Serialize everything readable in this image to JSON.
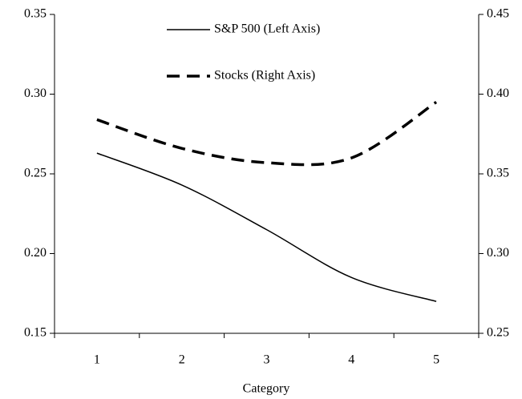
{
  "chart_data": {
    "type": "line",
    "x_label": "Category",
    "categories": [
      "1",
      "2",
      "3",
      "4",
      "5"
    ],
    "series": [
      {
        "name": "S&P 500 (Left Axis)",
        "color": "#000000",
        "dash": false,
        "values": [
          0.263,
          0.243,
          0.215,
          0.185,
          0.17
        ]
      },
      {
        "name": "Stocks (Right Axis)",
        "color": "#000000",
        "dash": true,
        "axis": "y2",
        "values": [
          0.384,
          0.366,
          0.357,
          0.36,
          0.395
        ]
      }
    ],
    "ylim": [
      0.15,
      0.35
    ],
    "yticks": [
      {
        "value": 0.15,
        "label": "0.15"
      },
      {
        "value": 0.2,
        "label": "0.20"
      },
      {
        "value": 0.25,
        "label": "0.25"
      },
      {
        "value": 0.3,
        "label": "0.30"
      },
      {
        "value": 0.35,
        "label": "0.35"
      }
    ],
    "y2lim": [
      0.25,
      0.45
    ],
    "y2ticks": [
      {
        "value": 0.25,
        "label": "0.25"
      },
      {
        "value": 0.3,
        "label": "0.30"
      },
      {
        "value": 0.35,
        "label": "0.35"
      },
      {
        "value": 0.4,
        "label": "0.40"
      },
      {
        "value": 0.45,
        "label": "0.45"
      }
    ],
    "grid": false,
    "legend": "upper-left"
  }
}
